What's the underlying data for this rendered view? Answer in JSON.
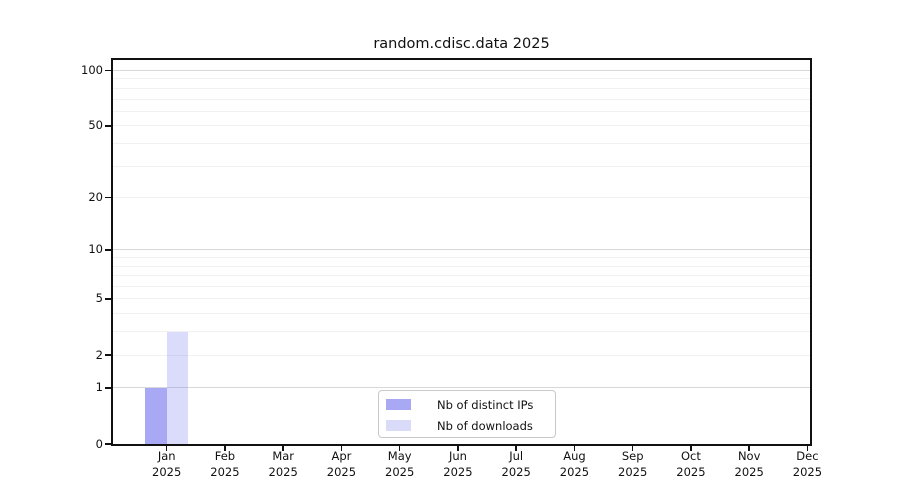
{
  "chart_data": {
    "type": "bar",
    "title": "random.cdisc.data 2025",
    "categories": [
      "Jan 2025",
      "Feb 2025",
      "Mar 2025",
      "Apr 2025",
      "May 2025",
      "Jun 2025",
      "Jul 2025",
      "Aug 2025",
      "Sep 2025",
      "Oct 2025",
      "Nov 2025",
      "Dec 2025"
    ],
    "month_labels": [
      "Jan",
      "Feb",
      "Mar",
      "Apr",
      "May",
      "Jun",
      "Jul",
      "Aug",
      "Sep",
      "Oct",
      "Nov",
      "Dec"
    ],
    "x_year": "2025",
    "series": [
      {
        "name": "Nb of distinct IPs",
        "base_color": "#6e6eee",
        "alpha": 0.6,
        "solid_color": "#a8a8f4",
        "values": [
          1,
          0,
          0,
          0,
          0,
          0,
          0,
          0,
          0,
          0,
          0,
          0
        ]
      },
      {
        "name": "Nb of downloads",
        "base_color": "#6e6eee",
        "alpha": 0.25,
        "solid_color": "#dadaf9",
        "values": [
          3,
          0,
          0,
          0,
          0,
          0,
          0,
          0,
          0,
          0,
          0,
          0
        ]
      }
    ],
    "xlabel": "",
    "ylabel": "",
    "y_scale": "log1p",
    "y_ticks": [
      0,
      1,
      2,
      5,
      10,
      20,
      50,
      100
    ],
    "ylim": [
      0,
      114
    ],
    "grid": {
      "show": true,
      "major_values": [
        1,
        10,
        100
      ],
      "minor_values": [
        2,
        3,
        4,
        5,
        6,
        7,
        8,
        9,
        20,
        30,
        40,
        50,
        60,
        70,
        80,
        90
      ],
      "major_color": "#d8d8d8",
      "minor_color": "#f1f1f1"
    },
    "legend": {
      "position": "lower center",
      "entries": [
        "Nb of distinct IPs",
        "Nb of downloads"
      ]
    },
    "colors": {
      "spine": "#111111",
      "text": "#111111",
      "background": "#ffffff"
    }
  }
}
